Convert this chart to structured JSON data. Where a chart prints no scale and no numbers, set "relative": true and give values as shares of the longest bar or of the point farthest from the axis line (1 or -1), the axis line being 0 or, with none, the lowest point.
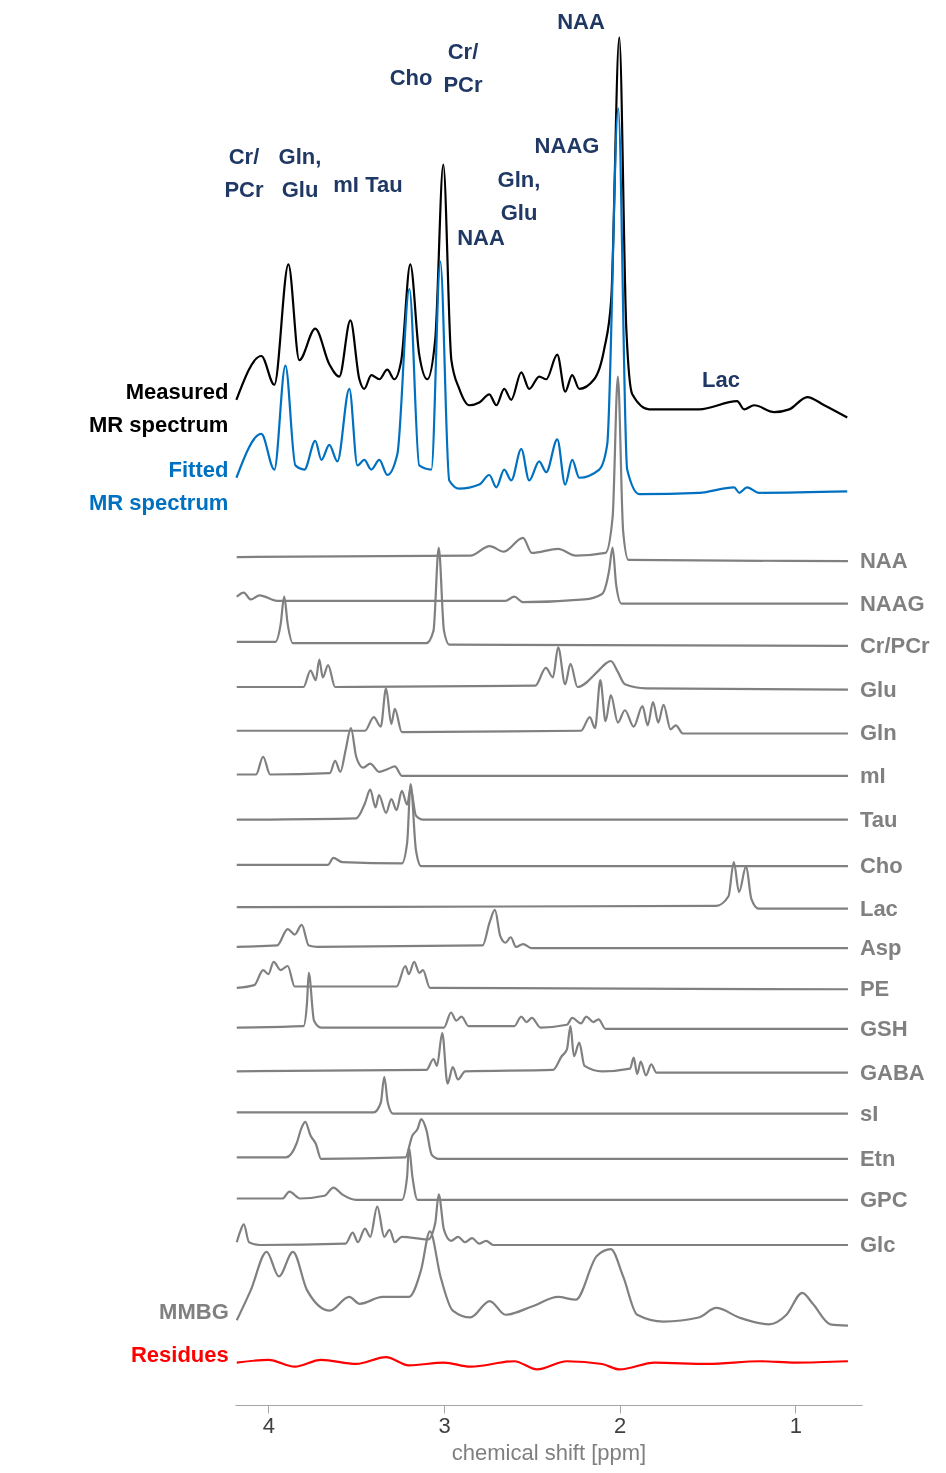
{
  "chart_data": {
    "type": "line",
    "xlabel": "chemical shift [ppm]",
    "xlim": [
      4.19,
      0.62
    ],
    "xticks": [
      4,
      3,
      2,
      1
    ],
    "relative": true,
    "series": [
      {
        "name": "Measured MR spectrum",
        "color": "#000000",
        "x": [
          4.182,
          4.04,
          3.966,
          3.886,
          3.824,
          3.733,
          3.653,
          3.596,
          3.533,
          3.482,
          3.454,
          3.414,
          3.368,
          3.323,
          3.283,
          3.243,
          3.192,
          3.141,
          3.095,
          3.05,
          3.004,
          2.958,
          2.913,
          2.856,
          2.799,
          2.742,
          2.702,
          2.657,
          2.617,
          2.56,
          2.515,
          2.458,
          2.418,
          2.355,
          2.31,
          2.27,
          2.23,
          2.145,
          2.088,
          2.048,
          2.002,
          1.962,
          1.928,
          1.832,
          1.547,
          1.331,
          1.291,
          1.234,
          1.12,
          1.034,
          0.932,
          0.835,
          0.704
        ],
        "values": [
          0.735,
          0.767,
          0.746,
          0.834,
          0.764,
          0.787,
          0.761,
          0.752,
          0.793,
          0.75,
          0.743,
          0.753,
          0.75,
          0.757,
          0.75,
          0.764,
          0.834,
          0.768,
          0.75,
          0.779,
          0.907,
          0.764,
          0.743,
          0.731,
          0.733,
          0.739,
          0.731,
          0.743,
          0.735,
          0.755,
          0.743,
          0.752,
          0.75,
          0.768,
          0.741,
          0.753,
          0.743,
          0.75,
          0.772,
          0.808,
          1.0,
          0.787,
          0.739,
          0.728,
          0.728,
          0.734,
          0.728,
          0.731,
          0.726,
          0.728,
          0.737,
          0.731,
          0.722
        ]
      },
      {
        "name": "Fitted MR spectrum",
        "color": "#0070c0",
        "x": [
          4.182,
          4.04,
          3.966,
          3.903,
          3.846,
          3.795,
          3.733,
          3.698,
          3.653,
          3.607,
          3.539,
          3.493,
          3.454,
          3.414,
          3.368,
          3.323,
          3.266,
          3.197,
          3.141,
          3.072,
          3.021,
          2.97,
          2.913,
          2.799,
          2.742,
          2.702,
          2.657,
          2.617,
          2.56,
          2.515,
          2.458,
          2.418,
          2.355,
          2.31,
          2.27,
          2.23,
          2.116,
          2.071,
          2.008,
          1.957,
          1.888,
          1.547,
          1.348,
          1.319,
          1.274,
          1.206,
          0.704
        ],
        "values": [
          0.678,
          0.71,
          0.684,
          0.76,
          0.687,
          0.684,
          0.705,
          0.691,
          0.702,
          0.69,
          0.743,
          0.687,
          0.691,
          0.684,
          0.691,
          0.68,
          0.695,
          0.816,
          0.687,
          0.684,
          0.836,
          0.676,
          0.67,
          0.673,
          0.68,
          0.671,
          0.684,
          0.676,
          0.699,
          0.676,
          0.69,
          0.682,
          0.706,
          0.673,
          0.691,
          0.678,
          0.684,
          0.702,
          0.948,
          0.684,
          0.666,
          0.667,
          0.671,
          0.667,
          0.671,
          0.667,
          0.668
        ]
      },
      {
        "name": "NAA",
        "color": "#808080",
        "x": [
          4.18,
          2.85,
          2.74,
          2.66,
          2.55,
          2.5,
          2.35,
          2.25,
          2.08,
          2.04,
          2.01,
          1.98,
          1.95,
          0.7
        ],
        "values": [
          0.62,
          0.621,
          0.628,
          0.624,
          0.634,
          0.623,
          0.626,
          0.621,
          0.623,
          0.649,
          0.752,
          0.639,
          0.618,
          0.617
        ]
      },
      {
        "name": "NAAG",
        "color": "#808080",
        "x": [
          4.18,
          4.14,
          4.1,
          4.05,
          3.95,
          2.65,
          2.6,
          2.55,
          2.2,
          2.1,
          2.06,
          2.04,
          2.02,
          1.99,
          0.7
        ],
        "values": [
          0.591,
          0.594,
          0.589,
          0.592,
          0.588,
          0.588,
          0.591,
          0.587,
          0.589,
          0.593,
          0.61,
          0.627,
          0.6,
          0.586,
          0.586
        ]
      },
      {
        "name": "Cr/PCr",
        "color": "#808080",
        "x": [
          4.18,
          3.96,
          3.93,
          3.91,
          3.89,
          3.86,
          3.1,
          3.06,
          3.03,
          3.0,
          2.97,
          0.7
        ],
        "values": [
          0.558,
          0.558,
          0.571,
          0.591,
          0.571,
          0.557,
          0.557,
          0.566,
          0.627,
          0.566,
          0.556,
          0.555
        ]
      },
      {
        "name": "Glu",
        "color": "#808080",
        "x": [
          4.18,
          3.8,
          3.76,
          3.73,
          3.71,
          3.69,
          3.66,
          3.62,
          2.48,
          2.42,
          2.38,
          2.35,
          2.31,
          2.28,
          2.24,
          2.12,
          2.08,
          2.05,
          2.01,
          1.97,
          1.85,
          0.7
        ],
        "values": [
          0.525,
          0.525,
          0.537,
          0.53,
          0.545,
          0.532,
          0.541,
          0.525,
          0.526,
          0.539,
          0.532,
          0.554,
          0.527,
          0.542,
          0.525,
          0.537,
          0.542,
          0.544,
          0.536,
          0.527,
          0.524,
          0.523
        ]
      },
      {
        "name": "Gln",
        "color": "#808080",
        "x": [
          4.18,
          3.45,
          3.4,
          3.36,
          3.33,
          3.3,
          3.28,
          3.24,
          2.22,
          2.17,
          2.14,
          2.11,
          2.08,
          2.05,
          2.01,
          1.97,
          1.92,
          1.87,
          1.84,
          1.81,
          1.78,
          1.75,
          1.71,
          1.68,
          1.64,
          0.7
        ],
        "values": [
          0.493,
          0.493,
          0.503,
          0.496,
          0.524,
          0.498,
          0.509,
          0.492,
          0.493,
          0.503,
          0.495,
          0.53,
          0.5,
          0.519,
          0.499,
          0.508,
          0.496,
          0.511,
          0.497,
          0.514,
          0.499,
          0.512,
          0.494,
          0.497,
          0.491,
          0.491
        ]
      },
      {
        "name": "mI",
        "color": "#808080",
        "x": [
          4.18,
          4.07,
          4.03,
          3.99,
          3.65,
          3.62,
          3.59,
          3.56,
          3.53,
          3.5,
          3.46,
          3.42,
          3.37,
          3.32,
          3.28,
          3.24,
          0.7
        ],
        "values": [
          0.461,
          0.461,
          0.474,
          0.461,
          0.462,
          0.471,
          0.463,
          0.479,
          0.495,
          0.474,
          0.466,
          0.469,
          0.463,
          0.465,
          0.467,
          0.46,
          0.46
        ]
      },
      {
        "name": "Tau",
        "color": "#808080",
        "x": [
          4.18,
          3.5,
          3.45,
          3.42,
          3.39,
          3.37,
          3.33,
          3.3,
          3.27,
          3.24,
          3.21,
          3.19,
          3.16,
          3.12,
          0.7
        ],
        "values": [
          0.428,
          0.429,
          0.44,
          0.45,
          0.437,
          0.446,
          0.433,
          0.443,
          0.435,
          0.449,
          0.439,
          0.451,
          0.431,
          0.428,
          0.428
        ]
      },
      {
        "name": "Cho",
        "color": "#808080",
        "x": [
          4.18,
          3.66,
          3.63,
          3.58,
          3.24,
          3.21,
          3.19,
          3.16,
          3.13,
          0.7
        ],
        "values": [
          0.395,
          0.395,
          0.4,
          0.397,
          0.396,
          0.411,
          0.454,
          0.406,
          0.394,
          0.394
        ]
      },
      {
        "name": "Lac",
        "color": "#808080",
        "x": [
          4.18,
          1.45,
          1.38,
          1.35,
          1.32,
          1.28,
          1.25,
          1.21,
          0.7
        ],
        "values": [
          0.364,
          0.365,
          0.372,
          0.397,
          0.375,
          0.394,
          0.37,
          0.363,
          0.363
        ]
      },
      {
        "name": "Asp",
        "color": "#808080",
        "x": [
          4.18,
          3.95,
          3.89,
          3.85,
          3.81,
          3.77,
          3.72,
          2.78,
          2.74,
          2.71,
          2.68,
          2.65,
          2.62,
          2.59,
          2.55,
          2.5,
          0.7
        ],
        "values": [
          0.335,
          0.336,
          0.348,
          0.344,
          0.351,
          0.336,
          0.335,
          0.336,
          0.353,
          0.362,
          0.343,
          0.338,
          0.342,
          0.335,
          0.337,
          0.334,
          0.334
        ]
      },
      {
        "name": "PE",
        "color": "#808080",
        "x": [
          4.18,
          4.08,
          4.03,
          4.0,
          3.97,
          3.93,
          3.89,
          3.85,
          3.27,
          3.22,
          3.2,
          3.17,
          3.14,
          3.12,
          3.08,
          0.7
        ],
        "values": [
          0.305,
          0.307,
          0.318,
          0.315,
          0.324,
          0.318,
          0.321,
          0.306,
          0.306,
          0.321,
          0.315,
          0.324,
          0.316,
          0.318,
          0.305,
          0.304
        ]
      },
      {
        "name": "GSH",
        "color": "#808080",
        "x": [
          4.18,
          3.8,
          3.78,
          3.77,
          3.74,
          3.7,
          3.0,
          2.96,
          2.93,
          2.9,
          2.86,
          2.6,
          2.56,
          2.53,
          2.5,
          2.45,
          2.3,
          2.27,
          2.22,
          2.19,
          2.15,
          2.12,
          2.08,
          0.7
        ],
        "values": [
          0.276,
          0.277,
          0.294,
          0.316,
          0.281,
          0.276,
          0.276,
          0.287,
          0.281,
          0.284,
          0.277,
          0.277,
          0.284,
          0.28,
          0.283,
          0.276,
          0.278,
          0.283,
          0.279,
          0.284,
          0.28,
          0.282,
          0.275,
          0.275
        ]
      },
      {
        "name": "GABA",
        "color": "#808080",
        "x": [
          4.18,
          3.1,
          3.06,
          3.04,
          3.01,
          2.98,
          2.95,
          2.92,
          2.88,
          2.38,
          2.33,
          2.3,
          2.28,
          2.26,
          2.23,
          2.2,
          2.1,
          1.94,
          1.92,
          1.9,
          1.88,
          1.85,
          1.82,
          1.79,
          0.7
        ],
        "values": [
          0.244,
          0.245,
          0.253,
          0.248,
          0.272,
          0.235,
          0.247,
          0.238,
          0.244,
          0.245,
          0.255,
          0.26,
          0.277,
          0.255,
          0.265,
          0.248,
          0.244,
          0.246,
          0.254,
          0.242,
          0.251,
          0.241,
          0.249,
          0.243,
          0.243
        ]
      },
      {
        "name": "sI",
        "color": "#808080",
        "x": [
          4.18,
          3.4,
          3.36,
          3.34,
          3.32,
          3.29,
          0.7
        ],
        "values": [
          0.214,
          0.214,
          0.221,
          0.24,
          0.221,
          0.213,
          0.213
        ]
      },
      {
        "name": "Etn",
        "color": "#808080",
        "x": [
          4.18,
          3.9,
          3.84,
          3.81,
          3.79,
          3.76,
          3.73,
          3.7,
          3.22,
          3.18,
          3.15,
          3.13,
          3.1,
          3.07,
          3.03,
          0.7
        ],
        "values": [
          0.181,
          0.181,
          0.191,
          0.203,
          0.207,
          0.197,
          0.191,
          0.18,
          0.181,
          0.197,
          0.202,
          0.209,
          0.201,
          0.183,
          0.18,
          0.18
        ]
      },
      {
        "name": "GPC",
        "color": "#808080",
        "x": [
          4.18,
          3.92,
          3.88,
          3.82,
          3.68,
          3.63,
          3.58,
          3.5,
          3.24,
          3.21,
          3.2,
          3.18,
          3.15,
          0.7
        ],
        "values": [
          0.151,
          0.151,
          0.156,
          0.151,
          0.153,
          0.159,
          0.154,
          0.15,
          0.15,
          0.167,
          0.189,
          0.167,
          0.15,
          0.15
        ]
      },
      {
        "name": "Glc",
        "color": "#808080",
        "x": [
          4.18,
          4.16,
          4.14,
          4.11,
          4.05,
          3.56,
          3.52,
          3.49,
          3.45,
          3.42,
          3.38,
          3.34,
          3.31,
          3.28,
          3.24,
          3.09,
          3.05,
          3.03,
          3.0,
          2.96,
          2.92,
          2.88,
          2.84,
          2.8,
          2.76,
          2.72,
          0.7
        ],
        "values": [
          0.119,
          0.127,
          0.132,
          0.119,
          0.117,
          0.118,
          0.126,
          0.119,
          0.129,
          0.123,
          0.145,
          0.123,
          0.128,
          0.119,
          0.123,
          0.121,
          0.133,
          0.154,
          0.128,
          0.12,
          0.123,
          0.119,
          0.122,
          0.118,
          0.12,
          0.117,
          0.117
        ]
      },
      {
        "name": "MMBG",
        "color": "#808080",
        "x": [
          4.18,
          4.1,
          4.01,
          3.94,
          3.86,
          3.78,
          3.65,
          3.54,
          3.48,
          3.35,
          3.2,
          3.13,
          3.08,
          3.02,
          2.95,
          2.85,
          2.74,
          2.65,
          2.5,
          2.35,
          2.25,
          2.13,
          2.05,
          1.98,
          1.9,
          1.75,
          1.55,
          1.45,
          1.32,
          1.15,
          1.05,
          0.96,
          0.9,
          0.8,
          0.7
        ],
        "values": [
          0.062,
          0.084,
          0.112,
          0.094,
          0.112,
          0.084,
          0.069,
          0.079,
          0.074,
          0.079,
          0.079,
          0.099,
          0.127,
          0.094,
          0.069,
          0.064,
          0.076,
          0.066,
          0.072,
          0.079,
          0.077,
          0.109,
          0.114,
          0.094,
          0.066,
          0.061,
          0.064,
          0.071,
          0.064,
          0.059,
          0.066,
          0.082,
          0.074,
          0.059,
          0.058
        ]
      },
      {
        "name": "Residues",
        "color": "#ff0000",
        "x": [
          4.18,
          4.0,
          3.85,
          3.7,
          3.5,
          3.33,
          3.2,
          3.0,
          2.85,
          2.6,
          2.47,
          2.3,
          2.1,
          2.0,
          1.8,
          1.5,
          1.2,
          1.0,
          0.7
        ],
        "values": [
          0.031,
          0.033,
          0.028,
          0.033,
          0.03,
          0.035,
          0.029,
          0.031,
          0.028,
          0.032,
          0.026,
          0.032,
          0.03,
          0.026,
          0.031,
          0.03,
          0.032,
          0.031,
          0.032
        ]
      }
    ],
    "annotations": [
      "Cr/ PCr",
      "Gln, Glu",
      "mI",
      "Tau",
      "Cho",
      "Cr/ PCr",
      "NAA",
      "NAAG",
      "Gln, Glu",
      "NAA",
      "Lac"
    ]
  }
}
